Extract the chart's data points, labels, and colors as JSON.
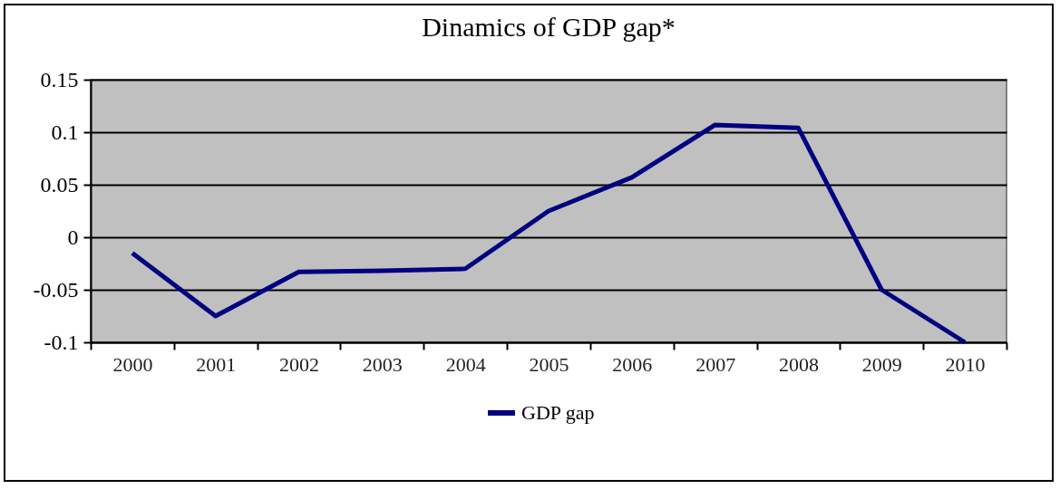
{
  "chart_data": {
    "type": "line",
    "title": "Dinamics of GDP gap*",
    "categories": [
      "2000",
      "2001",
      "2002",
      "2003",
      "2004",
      "2005",
      "2006",
      "2007",
      "2008",
      "2009",
      "2010"
    ],
    "series": [
      {
        "name": "GDP gap",
        "color": "#000080",
        "values": [
          -0.015,
          -0.075,
          -0.033,
          -0.032,
          -0.03,
          0.025,
          0.057,
          0.107,
          0.104,
          -0.05,
          -0.1
        ]
      }
    ],
    "ylim": [
      -0.1,
      0.15
    ],
    "yticks": [
      -0.1,
      -0.05,
      0,
      0.05,
      0.1,
      0.15
    ],
    "grid": "y",
    "legend": "bottom"
  }
}
